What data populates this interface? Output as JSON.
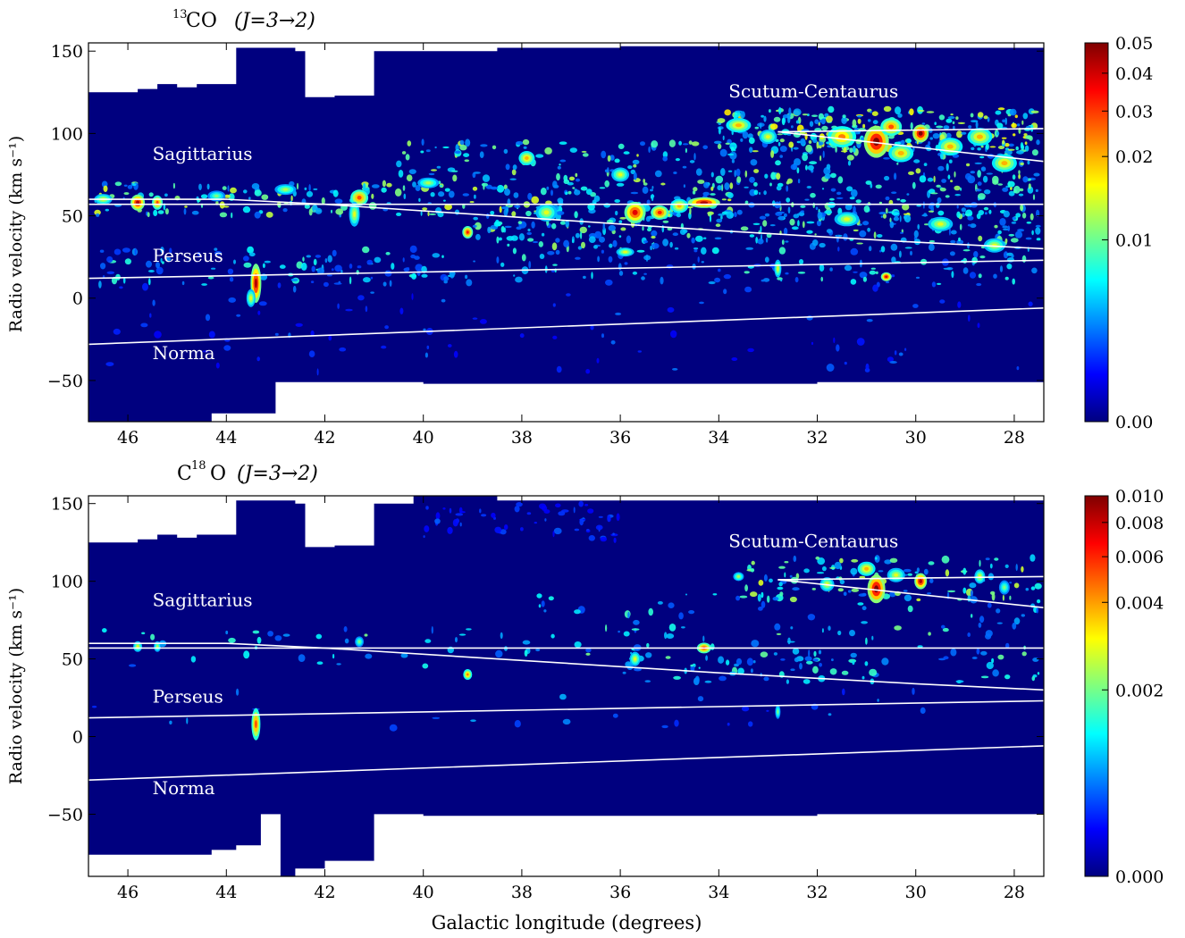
{
  "xlabel": "Galactic longitude (degrees)",
  "colors": {
    "background_navy": "#00007f",
    "arm_line": "#ffffff",
    "jet": [
      "#00007f",
      "#0000ff",
      "#007fff",
      "#00ffff",
      "#7fff7f",
      "#ffff00",
      "#ff7f00",
      "#ff0000",
      "#7f0000"
    ]
  },
  "chart_data": [
    {
      "type": "heatmap",
      "title_prefix": "13",
      "title_main": "CO",
      "title_transition": "(J=3→2)",
      "ylabel": "Radio velocity (km s⁻¹)",
      "xlabel": "",
      "xlim": [
        46.8,
        27.4
      ],
      "ylim": [
        -75,
        155
      ],
      "xticks": [
        46,
        44,
        42,
        40,
        38,
        36,
        34,
        32,
        30,
        28
      ],
      "yticks": [
        150,
        100,
        50,
        0,
        -50
      ],
      "ytick_labels": [
        "150",
        "100",
        "50",
        "0",
        "−50"
      ],
      "colorbar": {
        "ticks": [
          0.05,
          0.04,
          0.03,
          0.02,
          0.01,
          0.0
        ],
        "tick_labels": [
          "0.05",
          "0.04",
          "0.03",
          "0.02",
          "0.01",
          "0.00"
        ],
        "fractions": [
          1.0,
          0.92,
          0.82,
          0.7,
          0.48,
          0.0
        ]
      },
      "arm_labels": [
        {
          "text": "Scutum-Centaurus",
          "l": 33.8,
          "v": 122
        },
        {
          "text": "Sagittarius",
          "l": 45.5,
          "v": 84
        },
        {
          "text": "Perseus",
          "l": 45.5,
          "v": 22
        },
        {
          "text": "Norma",
          "l": 45.5,
          "v": -37
        }
      ],
      "arms": [
        {
          "points": [
            [
              46.8,
              57
            ],
            [
              27.4,
              57
            ]
          ]
        },
        {
          "points": [
            [
              46.8,
              60
            ],
            [
              44,
              60
            ],
            [
              42,
              57
            ],
            [
              38,
              49
            ],
            [
              34,
              41
            ],
            [
              30,
              34
            ],
            [
              27.4,
              30
            ]
          ]
        },
        {
          "points": [
            [
              32.8,
              101
            ],
            [
              27.4,
              103
            ]
          ]
        },
        {
          "points": [
            [
              32.8,
              101
            ],
            [
              27.4,
              83
            ]
          ]
        },
        {
          "points": [
            [
              46.8,
              12
            ],
            [
              27.4,
              23
            ]
          ]
        },
        {
          "points": [
            [
              46.8,
              -28
            ],
            [
              27.4,
              -6
            ]
          ]
        }
      ],
      "coverage_top": [
        [
          46.8,
          125
        ],
        [
          45.8,
          125
        ],
        [
          45.8,
          127
        ],
        [
          45.4,
          127
        ],
        [
          45.4,
          130
        ],
        [
          45.0,
          130
        ],
        [
          45.0,
          128
        ],
        [
          44.6,
          128
        ],
        [
          44.6,
          130
        ],
        [
          43.8,
          130
        ],
        [
          43.8,
          130
        ],
        [
          43.8,
          152
        ],
        [
          42.6,
          152
        ],
        [
          42.6,
          150
        ],
        [
          42.4,
          150
        ],
        [
          42.4,
          122
        ],
        [
          41.8,
          122
        ],
        [
          41.8,
          123
        ],
        [
          41.0,
          123
        ],
        [
          41.0,
          150
        ],
        [
          38.5,
          150
        ],
        [
          38.5,
          152
        ],
        [
          36.0,
          152
        ],
        [
          36.0,
          153
        ],
        [
          32.0,
          153
        ],
        [
          32.0,
          152
        ],
        [
          27.4,
          152
        ]
      ],
      "coverage_bottom": [
        [
          27.4,
          -51
        ],
        [
          32.0,
          -51
        ],
        [
          32.0,
          -52
        ],
        [
          40.0,
          -52
        ],
        [
          40.0,
          -51
        ],
        [
          43.0,
          -51
        ],
        [
          43.0,
          -70
        ],
        [
          44.3,
          -70
        ],
        [
          44.3,
          -75
        ],
        [
          46.8,
          -75
        ]
      ],
      "sources": [
        {
          "l": 45.8,
          "v": 58,
          "a": 0.95,
          "w": 8,
          "h": 9
        },
        {
          "l": 45.4,
          "v": 58,
          "a": 0.8,
          "w": 6,
          "h": 8
        },
        {
          "l": 46.5,
          "v": 60,
          "a": 0.6,
          "w": 10,
          "h": 6
        },
        {
          "l": 43.4,
          "v": 9,
          "a": 0.95,
          "w": 6,
          "h": 22
        },
        {
          "l": 43.5,
          "v": 0,
          "a": 0.6,
          "w": 5,
          "h": 10
        },
        {
          "l": 41.3,
          "v": 61,
          "a": 0.8,
          "w": 10,
          "h": 9
        },
        {
          "l": 41.4,
          "v": 51,
          "a": 0.6,
          "w": 6,
          "h": 14
        },
        {
          "l": 39.1,
          "v": 40,
          "a": 0.85,
          "w": 6,
          "h": 7
        },
        {
          "l": 37.9,
          "v": 85,
          "a": 0.7,
          "w": 9,
          "h": 8
        },
        {
          "l": 37.5,
          "v": 52,
          "a": 0.6,
          "w": 12,
          "h": 10
        },
        {
          "l": 36.0,
          "v": 75,
          "a": 0.6,
          "w": 10,
          "h": 8
        },
        {
          "l": 35.7,
          "v": 52,
          "a": 0.9,
          "w": 12,
          "h": 12
        },
        {
          "l": 35.2,
          "v": 52,
          "a": 0.85,
          "w": 10,
          "h": 8
        },
        {
          "l": 34.3,
          "v": 58,
          "a": 0.95,
          "w": 18,
          "h": 6
        },
        {
          "l": 34.8,
          "v": 56,
          "a": 0.7,
          "w": 10,
          "h": 8
        },
        {
          "l": 35.9,
          "v": 28,
          "a": 0.6,
          "w": 10,
          "h": 5
        },
        {
          "l": 33.6,
          "v": 105,
          "a": 0.7,
          "w": 14,
          "h": 8
        },
        {
          "l": 33.0,
          "v": 98,
          "a": 0.6,
          "w": 10,
          "h": 8
        },
        {
          "l": 31.5,
          "v": 98,
          "a": 0.75,
          "w": 16,
          "h": 12
        },
        {
          "l": 30.8,
          "v": 95,
          "a": 1.0,
          "w": 14,
          "h": 18
        },
        {
          "l": 30.5,
          "v": 104,
          "a": 0.8,
          "w": 12,
          "h": 10
        },
        {
          "l": 29.9,
          "v": 100,
          "a": 1.0,
          "w": 9,
          "h": 10
        },
        {
          "l": 30.3,
          "v": 88,
          "a": 0.7,
          "w": 14,
          "h": 10
        },
        {
          "l": 29.3,
          "v": 92,
          "a": 0.7,
          "w": 14,
          "h": 10
        },
        {
          "l": 28.7,
          "v": 98,
          "a": 0.7,
          "w": 14,
          "h": 10
        },
        {
          "l": 28.2,
          "v": 82,
          "a": 0.7,
          "w": 14,
          "h": 10
        },
        {
          "l": 30.6,
          "v": 13,
          "a": 0.9,
          "w": 6,
          "h": 5
        },
        {
          "l": 31.4,
          "v": 48,
          "a": 0.6,
          "w": 14,
          "h": 8
        },
        {
          "l": 29.5,
          "v": 45,
          "a": 0.6,
          "w": 14,
          "h": 8
        },
        {
          "l": 28.4,
          "v": 32,
          "a": 0.6,
          "w": 12,
          "h": 8
        },
        {
          "l": 32.8,
          "v": 18,
          "a": 0.6,
          "w": 4,
          "h": 10
        },
        {
          "l": 39.9,
          "v": 70,
          "a": 0.55,
          "w": 12,
          "h": 6
        },
        {
          "l": 42.8,
          "v": 66,
          "a": 0.55,
          "w": 12,
          "h": 6
        },
        {
          "l": 44.2,
          "v": 62,
          "a": 0.5,
          "w": 10,
          "h": 6
        }
      ],
      "clouds": [
        {
          "l0": 46.7,
          "l1": 27.5,
          "v0": 50,
          "v1": 70,
          "n": 380,
          "a0": 0.22,
          "a1": 0.6
        },
        {
          "l0": 40.5,
          "l1": 27.5,
          "v0": 70,
          "v1": 95,
          "n": 240,
          "a0": 0.22,
          "a1": 0.58
        },
        {
          "l0": 34.0,
          "l1": 27.5,
          "v0": 90,
          "v1": 115,
          "n": 260,
          "a0": 0.25,
          "a1": 0.65
        },
        {
          "l0": 39.0,
          "l1": 27.5,
          "v0": 30,
          "v1": 52,
          "n": 260,
          "a0": 0.22,
          "a1": 0.55
        },
        {
          "l0": 46.7,
          "l1": 27.5,
          "v0": 8,
          "v1": 30,
          "n": 220,
          "a0": 0.18,
          "a1": 0.45
        },
        {
          "l0": 46.7,
          "l1": 27.5,
          "v0": -45,
          "v1": 8,
          "n": 90,
          "a0": 0.12,
          "a1": 0.25
        }
      ]
    },
    {
      "type": "heatmap",
      "title_prefix": "18",
      "title_main": "C",
      "title_suffix": "O",
      "title_transition": "(J=3→2)",
      "ylabel": "Radio velocity (km s⁻¹)",
      "xlabel": "Galactic longitude (degrees)",
      "xlim": [
        46.8,
        27.4
      ],
      "ylim": [
        -90,
        155
      ],
      "xticks": [
        46,
        44,
        42,
        40,
        38,
        36,
        34,
        32,
        30,
        28
      ],
      "yticks": [
        150,
        100,
        50,
        0,
        -50
      ],
      "ytick_labels": [
        "150",
        "100",
        "50",
        "0",
        "−50"
      ],
      "colorbar": {
        "ticks": [
          0.01,
          0.008,
          0.006,
          0.004,
          0.002,
          0.0
        ],
        "tick_labels": [
          "0.010",
          "0.008",
          "0.006",
          "0.004",
          "0.002",
          "0.000"
        ],
        "fractions": [
          1.0,
          0.93,
          0.84,
          0.72,
          0.49,
          0.0
        ]
      },
      "arm_labels": [
        {
          "text": "Scutum-Centaurus",
          "l": 33.8,
          "v": 122
        },
        {
          "text": "Sagittarius",
          "l": 45.5,
          "v": 84
        },
        {
          "text": "Perseus",
          "l": 45.5,
          "v": 22
        },
        {
          "text": "Norma",
          "l": 45.5,
          "v": -37
        }
      ],
      "arms": [
        {
          "points": [
            [
              46.8,
              57
            ],
            [
              27.4,
              57
            ]
          ]
        },
        {
          "points": [
            [
              46.8,
              60
            ],
            [
              44,
              60
            ],
            [
              42,
              57
            ],
            [
              38,
              49
            ],
            [
              34,
              41
            ],
            [
              30,
              34
            ],
            [
              27.4,
              30
            ]
          ]
        },
        {
          "points": [
            [
              32.8,
              101
            ],
            [
              27.4,
              103
            ]
          ]
        },
        {
          "points": [
            [
              32.8,
              101
            ],
            [
              27.4,
              83
            ]
          ]
        },
        {
          "points": [
            [
              46.8,
              12
            ],
            [
              27.4,
              23
            ]
          ]
        },
        {
          "points": [
            [
              46.8,
              -28
            ],
            [
              27.4,
              -6
            ]
          ]
        }
      ],
      "coverage_top": [
        [
          46.8,
          125
        ],
        [
          45.8,
          125
        ],
        [
          45.8,
          127
        ],
        [
          45.4,
          127
        ],
        [
          45.4,
          130
        ],
        [
          45.0,
          130
        ],
        [
          45.0,
          128
        ],
        [
          44.6,
          128
        ],
        [
          44.6,
          130
        ],
        [
          43.8,
          130
        ],
        [
          43.8,
          152
        ],
        [
          42.6,
          152
        ],
        [
          42.6,
          150
        ],
        [
          42.4,
          150
        ],
        [
          42.4,
          122
        ],
        [
          41.8,
          122
        ],
        [
          41.8,
          123
        ],
        [
          41.0,
          123
        ],
        [
          41.0,
          150
        ],
        [
          40.2,
          150
        ],
        [
          40.2,
          155
        ],
        [
          38.5,
          155
        ],
        [
          38.5,
          152
        ],
        [
          27.4,
          152
        ]
      ],
      "coverage_bottom": [
        [
          27.4,
          -50
        ],
        [
          32.0,
          -50
        ],
        [
          32.0,
          -51
        ],
        [
          40.0,
          -51
        ],
        [
          40.0,
          -50
        ],
        [
          41.0,
          -50
        ],
        [
          41.0,
          -80
        ],
        [
          42.0,
          -80
        ],
        [
          42.0,
          -85
        ],
        [
          42.6,
          -85
        ],
        [
          42.6,
          -90
        ],
        [
          42.9,
          -90
        ],
        [
          42.9,
          -50
        ],
        [
          43.3,
          -50
        ],
        [
          43.3,
          -70
        ],
        [
          43.8,
          -70
        ],
        [
          43.8,
          -73
        ],
        [
          44.3,
          -73
        ],
        [
          44.3,
          -76
        ],
        [
          46.8,
          -76
        ]
      ],
      "sources": [
        {
          "l": 30.8,
          "v": 95,
          "a": 1.0,
          "w": 10,
          "h": 16
        },
        {
          "l": 29.9,
          "v": 100,
          "a": 0.95,
          "w": 7,
          "h": 9
        },
        {
          "l": 31.0,
          "v": 108,
          "a": 0.7,
          "w": 10,
          "h": 8
        },
        {
          "l": 30.4,
          "v": 104,
          "a": 0.6,
          "w": 10,
          "h": 8
        },
        {
          "l": 28.7,
          "v": 103,
          "a": 0.6,
          "w": 6,
          "h": 8
        },
        {
          "l": 28.2,
          "v": 96,
          "a": 0.5,
          "w": 6,
          "h": 8
        },
        {
          "l": 31.8,
          "v": 98,
          "a": 0.6,
          "w": 8,
          "h": 8
        },
        {
          "l": 34.3,
          "v": 57,
          "a": 0.85,
          "w": 8,
          "h": 6
        },
        {
          "l": 35.7,
          "v": 50,
          "a": 0.6,
          "w": 6,
          "h": 8
        },
        {
          "l": 39.1,
          "v": 40,
          "a": 0.75,
          "w": 5,
          "h": 6
        },
        {
          "l": 43.4,
          "v": 8,
          "a": 0.8,
          "w": 5,
          "h": 18
        },
        {
          "l": 45.8,
          "v": 58,
          "a": 0.6,
          "w": 5,
          "h": 6
        },
        {
          "l": 45.4,
          "v": 58,
          "a": 0.55,
          "w": 4,
          "h": 6
        },
        {
          "l": 41.3,
          "v": 61,
          "a": 0.5,
          "w": 5,
          "h": 6
        },
        {
          "l": 33.6,
          "v": 103,
          "a": 0.55,
          "w": 6,
          "h": 5
        },
        {
          "l": 32.8,
          "v": 16,
          "a": 0.5,
          "w": 3,
          "h": 8
        }
      ],
      "clouds": [
        {
          "l0": 46.7,
          "l1": 27.5,
          "v0": 45,
          "v1": 70,
          "n": 80,
          "a0": 0.2,
          "a1": 0.5
        },
        {
          "l0": 38.0,
          "l1": 27.5,
          "v0": 65,
          "v1": 92,
          "n": 60,
          "a0": 0.2,
          "a1": 0.45
        },
        {
          "l0": 33.5,
          "l1": 27.5,
          "v0": 88,
          "v1": 115,
          "n": 110,
          "a0": 0.22,
          "a1": 0.6
        },
        {
          "l0": 36.0,
          "l1": 27.5,
          "v0": 35,
          "v1": 55,
          "n": 70,
          "a0": 0.2,
          "a1": 0.45
        },
        {
          "l0": 40.0,
          "l1": 36.0,
          "v0": 126,
          "v1": 150,
          "n": 60,
          "a0": 0.12,
          "a1": 0.22
        },
        {
          "l0": 46.7,
          "l1": 27.5,
          "v0": 5,
          "v1": 30,
          "n": 25,
          "a0": 0.15,
          "a1": 0.3
        }
      ]
    }
  ]
}
